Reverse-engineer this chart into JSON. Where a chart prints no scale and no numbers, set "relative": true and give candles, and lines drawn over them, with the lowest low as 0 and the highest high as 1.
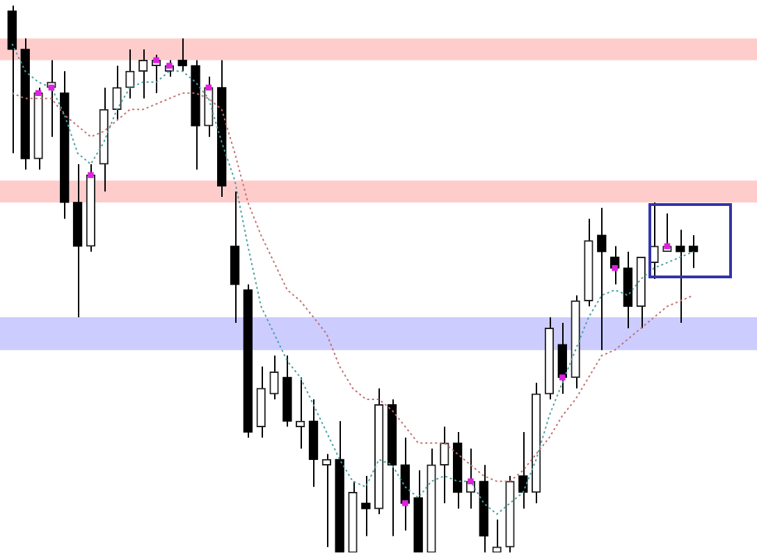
{
  "chart_data": {
    "type": "candlestick",
    "relative": true,
    "legend": false,
    "categories": [
      null,
      null,
      null,
      null,
      null,
      null,
      null,
      null,
      null,
      null,
      null,
      null,
      null,
      null,
      null,
      null,
      null,
      null,
      null,
      null,
      null,
      null,
      null,
      null,
      null,
      null,
      null,
      null,
      null,
      null,
      null,
      null,
      null,
      null,
      null,
      null,
      null,
      null,
      null,
      null,
      null,
      null,
      null,
      null,
      null,
      null,
      null,
      null,
      null,
      null,
      null,
      null,
      null
    ],
    "ohlc": [
      [
        0.99,
        1,
        0.73,
        0.92
      ],
      [
        0.92,
        0.94,
        0.7,
        0.72
      ],
      [
        0.72,
        0.85,
        0.7,
        0.84
      ],
      [
        0.85,
        0.9,
        0.76,
        0.86
      ],
      [
        0.84,
        0.88,
        0.61,
        0.64
      ],
      [
        0.64,
        0.71,
        0.43,
        0.56
      ],
      [
        0.56,
        0.71,
        0.55,
        0.69
      ],
      [
        0.71,
        0.85,
        0.66,
        0.81
      ],
      [
        0.81,
        0.89,
        0.79,
        0.85
      ],
      [
        0.85,
        0.92,
        0.83,
        0.88
      ],
      [
        0.88,
        0.92,
        0.83,
        0.9
      ],
      [
        0.89,
        0.91,
        0.84,
        0.9
      ],
      [
        0.88,
        0.9,
        0.87,
        0.89
      ],
      [
        0.9,
        0.94,
        0.88,
        0.89
      ],
      [
        0.89,
        0.9,
        0.7,
        0.78
      ],
      [
        0.78,
        0.87,
        0.76,
        0.85
      ],
      [
        0.85,
        0.9,
        0.65,
        0.67
      ],
      [
        0.56,
        0.66,
        0.42,
        0.49
      ],
      [
        0.48,
        0.49,
        0.21,
        0.22
      ],
      [
        0.23,
        0.34,
        0.21,
        0.3
      ],
      [
        0.29,
        0.36,
        0.28,
        0.33
      ],
      [
        0.32,
        0.36,
        0.23,
        0.24
      ],
      [
        0.23,
        0.32,
        0.19,
        0.24
      ],
      [
        0.24,
        0.28,
        0.12,
        0.17
      ],
      [
        0.16,
        0.18,
        0.01,
        0.17
      ],
      [
        0.17,
        0.24,
        0,
        0
      ],
      [
        0,
        0.13,
        0,
        0.11
      ],
      [
        0.09,
        0.14,
        0.03,
        0.08
      ],
      [
        0.08,
        0.3,
        0.07,
        0.27
      ],
      [
        0.27,
        0.28,
        0.03,
        0.16
      ],
      [
        0.16,
        0.21,
        0.04,
        0.09
      ],
      [
        0.1,
        0.15,
        0,
        0
      ],
      [
        0,
        0.19,
        0,
        0.16
      ],
      [
        0.16,
        0.23,
        0.09,
        0.2
      ],
      [
        0.2,
        0.22,
        0.08,
        0.11
      ],
      [
        0.11,
        0.19,
        0.08,
        0.13
      ],
      [
        0.13,
        0.16,
        0,
        0.03
      ],
      [
        0,
        0.06,
        0,
        0.01
      ],
      [
        0.01,
        0.14,
        0,
        0.13
      ],
      [
        0.14,
        0.22,
        0.08,
        0.11
      ],
      [
        0.11,
        0.31,
        0.09,
        0.29
      ],
      [
        0.29,
        0.43,
        0.28,
        0.41
      ],
      [
        0.38,
        0.42,
        0.29,
        0.32
      ],
      [
        0.32,
        0.47,
        0.3,
        0.46
      ],
      [
        0.46,
        0.61,
        0.45,
        0.57
      ],
      [
        0.58,
        0.63,
        0.37,
        0.55
      ],
      [
        0.54,
        0.56,
        0.49,
        0.52
      ],
      [
        0.52,
        0.55,
        0.41,
        0.45
      ],
      [
        0.45,
        0.54,
        0.41,
        0.54
      ],
      [
        0.53,
        0.64,
        0.5,
        0.56
      ],
      [
        0.55,
        0.62,
        0.55,
        0.56
      ],
      [
        0.56,
        0.59,
        0.42,
        0.55
      ],
      [
        0.56,
        0.58,
        0.52,
        0.55
      ]
    ],
    "series": [
      {
        "type": "line",
        "color": "#4aa0a0",
        "line_style": "dotted",
        "marker": "none",
        "values": [
          0.93,
          0.88,
          0.86,
          0.85,
          0.8,
          0.73,
          0.71,
          0.75,
          0.81,
          0.85,
          0.86,
          0.86,
          0.88,
          0.88,
          0.86,
          0.83,
          0.75,
          0.68,
          0.56,
          0.45,
          0.4,
          0.35,
          0.32,
          0.27,
          0.22,
          0.17,
          0.13,
          0.12,
          0.17,
          0.16,
          0.12,
          0.1,
          0.13,
          0.14,
          0.13,
          0.13,
          0.09,
          0.07,
          0.09,
          0.11,
          0.17,
          0.25,
          0.31,
          0.37,
          0.43,
          0.47,
          0.48,
          0.47,
          0.5,
          0.52,
          0.53,
          0.54,
          0.55
        ]
      },
      {
        "type": "line",
        "color": "#c07070",
        "line_style": "dotted",
        "marker": "none",
        "values": [
          0.84,
          0.83,
          0.83,
          0.83,
          0.8,
          0.78,
          0.76,
          0.77,
          0.79,
          0.81,
          0.81,
          0.82,
          0.83,
          0.84,
          0.84,
          0.83,
          0.81,
          0.73,
          0.64,
          0.58,
          0.53,
          0.48,
          0.46,
          0.43,
          0.4,
          0.34,
          0.3,
          0.28,
          0.28,
          0.26,
          0.23,
          0.2,
          0.2,
          0.2,
          0.18,
          0.16,
          0.14,
          0.13,
          0.13,
          0.15,
          0.18,
          0.21,
          0.25,
          0.28,
          0.32,
          0.36,
          0.37,
          0.39,
          0.41,
          0.43,
          0.45,
          0.46,
          0.47
        ]
      },
      {
        "type": "scatter",
        "color": "#e020e0",
        "marker": "square",
        "values": [
          null,
          null,
          0.84,
          0.85,
          null,
          null,
          0.69,
          null,
          null,
          null,
          null,
          0.9,
          0.89,
          null,
          null,
          0.85,
          null,
          null,
          null,
          null,
          null,
          null,
          null,
          null,
          null,
          null,
          null,
          null,
          null,
          null,
          0.09,
          null,
          null,
          null,
          null,
          0.13,
          null,
          null,
          null,
          null,
          null,
          null,
          0.32,
          null,
          null,
          null,
          0.52,
          null,
          null,
          null,
          0.56,
          null,
          null
        ]
      }
    ],
    "bands": [
      {
        "axis": "y",
        "from": 0.9,
        "to": 0.94,
        "color": "#ffcccc"
      },
      {
        "axis": "y",
        "from": 0.64,
        "to": 0.68,
        "color": "#ffcccc"
      },
      {
        "axis": "y",
        "from": 0.37,
        "to": 0.43,
        "color": "#ccccff"
      }
    ]
  }
}
